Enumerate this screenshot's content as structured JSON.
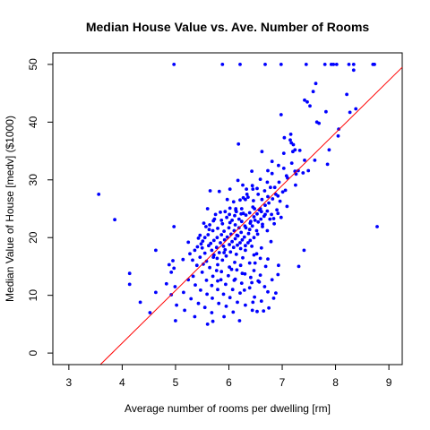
{
  "chart_data": {
    "type": "scatter",
    "title": "Median House Value vs. Ave. Number of Rooms",
    "xlabel": "Average number of rooms per dwelling [rm]",
    "ylabel": "Median Value of House [medv] ($1000)",
    "xlim": [
      2.7,
      9.25
    ],
    "ylim": [
      -2,
      52
    ],
    "xticks": [
      3,
      4,
      5,
      6,
      7,
      8,
      9
    ],
    "yticks": [
      0,
      10,
      20,
      30,
      40,
      50
    ],
    "grid": false,
    "legend": "none",
    "point_color": "#0000ff",
    "line_color": "#ff0000",
    "regression_line": {
      "intercept": -34.67,
      "slope": 9.1
    },
    "points": [
      [
        4.97,
        50
      ],
      [
        5.88,
        50
      ],
      [
        6.21,
        50
      ],
      [
        6.68,
        50
      ],
      [
        6.98,
        50
      ],
      [
        7.45,
        50
      ],
      [
        7.8,
        50
      ],
      [
        7.92,
        50
      ],
      [
        7.96,
        50
      ],
      [
        8.02,
        50
      ],
      [
        8.25,
        50
      ],
      [
        8.34,
        50
      ],
      [
        8.7,
        50
      ],
      [
        8.73,
        50
      ],
      [
        8.34,
        49
      ],
      [
        7.63,
        46.7
      ],
      [
        7.58,
        45.3
      ],
      [
        8.21,
        44.8
      ],
      [
        7.42,
        43.8
      ],
      [
        7.47,
        43.5
      ],
      [
        7.52,
        42.8
      ],
      [
        8.27,
        41.7
      ],
      [
        6.98,
        41.3
      ],
      [
        7.65,
        40.0
      ],
      [
        8.06,
        38.8
      ],
      [
        8.05,
        37.6
      ],
      [
        7.16,
        37.9
      ],
      [
        7.15,
        36.9
      ],
      [
        6.18,
        36.2
      ],
      [
        7.04,
        37.3
      ],
      [
        7.17,
        36.4
      ],
      [
        7.21,
        36.1
      ],
      [
        7.33,
        35.1
      ],
      [
        7.24,
        35.2
      ],
      [
        7.03,
        34.6
      ],
      [
        6.62,
        34.9
      ],
      [
        6.81,
        33.2
      ],
      [
        7.42,
        33.4
      ],
      [
        7.61,
        33.4
      ],
      [
        7.85,
        32.7
      ],
      [
        6.93,
        32.5
      ],
      [
        7.03,
        32.0
      ],
      [
        6.73,
        31.6
      ],
      [
        7.24,
        31.5
      ],
      [
        7.49,
        31.6
      ],
      [
        7.39,
        31.2
      ],
      [
        6.81,
        31.1
      ],
      [
        6.43,
        31.5
      ],
      [
        6.59,
        30.1
      ],
      [
        7.1,
        30.3
      ],
      [
        7.08,
        30.7
      ],
      [
        6.94,
        29.6
      ],
      [
        6.72,
        29.6
      ],
      [
        6.17,
        29.9
      ],
      [
        6.26,
        29.1
      ],
      [
        6.44,
        29.0
      ],
      [
        6.86,
        28.7
      ],
      [
        7.25,
        29.1
      ],
      [
        6.53,
        28.5
      ],
      [
        6.45,
        28.4
      ],
      [
        6.78,
        28.7
      ],
      [
        6.67,
        28.1
      ],
      [
        6.33,
        28.4
      ],
      [
        6.02,
        28.4
      ],
      [
        5.82,
        28.0
      ],
      [
        6.34,
        27.5
      ],
      [
        7.01,
        27.9
      ],
      [
        6.55,
        27.5
      ],
      [
        6.73,
        27.1
      ],
      [
        6.62,
        26.6
      ],
      [
        6.31,
        26.6
      ],
      [
        6.82,
        26.7
      ],
      [
        6.21,
        26.5
      ],
      [
        5.97,
        26.6
      ],
      [
        6.46,
        26.4
      ],
      [
        6.09,
        26.2
      ],
      [
        6.68,
        25.6
      ],
      [
        6.45,
        25.3
      ],
      [
        6.13,
        25.0
      ],
      [
        6.24,
        25.0
      ],
      [
        6.48,
        25.0
      ],
      [
        6.57,
        24.8
      ],
      [
        6.9,
        24.8
      ],
      [
        6.14,
        24.5
      ],
      [
        5.93,
        24.5
      ],
      [
        6.27,
        24.2
      ],
      [
        6.39,
        24.3
      ],
      [
        6.53,
        24.1
      ],
      [
        6.68,
        24.0
      ],
      [
        6.23,
        24.1
      ],
      [
        6.01,
        24.0
      ],
      [
        5.84,
        24.4
      ],
      [
        6.11,
        23.8
      ],
      [
        6.32,
        23.9
      ],
      [
        6.47,
        23.6
      ],
      [
        6.66,
        23.7
      ],
      [
        6.77,
        23.2
      ],
      [
        6.84,
        23.3
      ],
      [
        6.98,
        23.5
      ],
      [
        6.19,
        23.2
      ],
      [
        5.96,
        23.5
      ],
      [
        5.73,
        23.2
      ],
      [
        6.06,
        23.0
      ],
      [
        6.24,
        22.8
      ],
      [
        6.41,
        22.8
      ],
      [
        6.55,
        22.7
      ],
      [
        6.02,
        22.6
      ],
      [
        5.88,
        22.4
      ],
      [
        5.64,
        22.2
      ],
      [
        6.12,
        22.2
      ],
      [
        6.3,
        22.0
      ],
      [
        6.44,
        22.0
      ],
      [
        6.63,
        21.9
      ],
      [
        6.19,
        21.7
      ],
      [
        6.0,
        21.7
      ],
      [
        5.79,
        21.6
      ],
      [
        5.57,
        21.9
      ],
      [
        6.39,
        21.4
      ],
      [
        6.52,
        21.2
      ],
      [
        6.72,
        21.2
      ],
      [
        6.1,
        21.2
      ],
      [
        5.91,
        21.1
      ],
      [
        5.7,
        21.2
      ],
      [
        6.23,
        20.9
      ],
      [
        6.37,
        20.7
      ],
      [
        6.54,
        20.6
      ],
      [
        6.04,
        20.6
      ],
      [
        5.86,
        20.5
      ],
      [
        5.61,
        20.5
      ],
      [
        6.17,
        20.3
      ],
      [
        6.29,
        20.1
      ],
      [
        6.47,
        20.0
      ],
      [
        5.97,
        20.1
      ],
      [
        5.78,
        20.0
      ],
      [
        5.55,
        20.0
      ],
      [
        5.43,
        19.9
      ],
      [
        6.12,
        19.8
      ],
      [
        6.25,
        19.6
      ],
      [
        6.4,
        19.5
      ],
      [
        5.92,
        19.6
      ],
      [
        5.72,
        19.5
      ],
      [
        5.51,
        19.4
      ],
      [
        6.06,
        19.3
      ],
      [
        6.21,
        19.1
      ],
      [
        6.36,
        19.1
      ],
      [
        5.84,
        19.1
      ],
      [
        5.66,
        19.0
      ],
      [
        5.48,
        18.9
      ],
      [
        6.01,
        18.8
      ],
      [
        6.16,
        18.7
      ],
      [
        6.31,
        18.6
      ],
      [
        5.9,
        18.5
      ],
      [
        5.62,
        18.6
      ],
      [
        5.41,
        18.4
      ],
      [
        6.09,
        18.3
      ],
      [
        5.77,
        18.3
      ],
      [
        5.5,
        18.2
      ],
      [
        6.22,
        18.1
      ],
      [
        5.93,
        17.9
      ],
      [
        5.68,
        17.8
      ],
      [
        5.36,
        17.8
      ],
      [
        4.63,
        17.8
      ],
      [
        7.41,
        17.8
      ],
      [
        6.03,
        17.5
      ],
      [
        5.82,
        17.4
      ],
      [
        5.55,
        17.3
      ],
      [
        5.27,
        17.2
      ],
      [
        6.14,
        17.1
      ],
      [
        6.47,
        17.0
      ],
      [
        5.95,
        16.8
      ],
      [
        5.71,
        16.6
      ],
      [
        5.46,
        16.6
      ],
      [
        5.14,
        16.2
      ],
      [
        6.26,
        16.5
      ],
      [
        6.59,
        16.4
      ],
      [
        5.88,
        16.1
      ],
      [
        5.58,
        15.9
      ],
      [
        4.95,
        16.0
      ],
      [
        6.11,
        15.7
      ],
      [
        6.39,
        15.6
      ],
      [
        5.79,
        15.3
      ],
      [
        5.4,
        15.2
      ],
      [
        4.88,
        15.3
      ],
      [
        6.22,
        15.2
      ],
      [
        6.69,
        15.0
      ],
      [
        6.01,
        14.9
      ],
      [
        5.64,
        14.8
      ],
      [
        4.97,
        14.7
      ],
      [
        7.31,
        15.0
      ],
      [
        6.15,
        14.4
      ],
      [
        6.47,
        14.3
      ],
      [
        5.86,
        14.1
      ],
      [
        5.5,
        14.0
      ],
      [
        4.92,
        14.0
      ],
      [
        6.3,
        13.7
      ],
      [
        6.59,
        13.5
      ],
      [
        5.99,
        13.4
      ],
      [
        5.7,
        13.3
      ],
      [
        5.33,
        13.3
      ],
      [
        4.14,
        13.8
      ],
      [
        6.41,
        13.1
      ],
      [
        6.12,
        12.8
      ],
      [
        5.85,
        12.7
      ],
      [
        5.58,
        12.6
      ],
      [
        5.24,
        12.7
      ],
      [
        4.83,
        12.0
      ],
      [
        4.14,
        11.9
      ],
      [
        6.55,
        12.5
      ],
      [
        6.24,
        12.1
      ],
      [
        5.94,
        11.9
      ],
      [
        5.68,
        11.7
      ],
      [
        5.37,
        11.8
      ],
      [
        4.99,
        11.5
      ],
      [
        6.39,
        11.3
      ],
      [
        6.07,
        11.0
      ],
      [
        5.79,
        11.0
      ],
      [
        5.47,
        10.9
      ],
      [
        6.73,
        10.6
      ],
      [
        5.15,
        10.5
      ],
      [
        4.63,
        10.5
      ],
      [
        6.21,
        10.4
      ],
      [
        5.9,
        10.2
      ],
      [
        5.59,
        10.2
      ],
      [
        4.92,
        10.1
      ],
      [
        6.88,
        10.4
      ],
      [
        6.48,
        9.7
      ],
      [
        6.02,
        9.6
      ],
      [
        5.69,
        9.5
      ],
      [
        5.29,
        9.4
      ],
      [
        6.61,
        9.0
      ],
      [
        6.16,
        8.8
      ],
      [
        5.81,
        8.6
      ],
      [
        5.43,
        8.6
      ],
      [
        5.02,
        8.3
      ],
      [
        4.34,
        8.8
      ],
      [
        6.31,
        8.3
      ],
      [
        5.95,
        8.1
      ],
      [
        5.55,
        7.9
      ],
      [
        6.75,
        7.8
      ],
      [
        6.44,
        7.4
      ],
      [
        5.17,
        7.4
      ],
      [
        4.52,
        7.0
      ],
      [
        6.08,
        7.1
      ],
      [
        5.68,
        7.0
      ],
      [
        6.65,
        7.3
      ],
      [
        5.36,
        6.3
      ],
      [
        5.91,
        6.3
      ],
      [
        6.2,
        5.6
      ],
      [
        5.6,
        5.0
      ],
      [
        5.0,
        5.6
      ],
      [
        5.7,
        5.5
      ],
      [
        3.56,
        27.5
      ],
      [
        3.86,
        23.1
      ],
      [
        8.78,
        21.9
      ],
      [
        8.38,
        42.3
      ],
      [
        7.88,
        35.2
      ],
      [
        7.69,
        39.8
      ],
      [
        7.82,
        41.8
      ],
      [
        4.97,
        21.9
      ],
      [
        6.4,
        22.5
      ],
      [
        6.63,
        22.3
      ],
      [
        6.85,
        22.4
      ],
      [
        6.92,
        24.2
      ],
      [
        7.09,
        25.4
      ],
      [
        6.75,
        26.0
      ],
      [
        6.36,
        27.0
      ],
      [
        6.27,
        26.9
      ],
      [
        7.18,
        32.9
      ],
      [
        7.2,
        34.9
      ],
      [
        7.3,
        31.6
      ],
      [
        6.88,
        27.5
      ],
      [
        6.59,
        25.0
      ],
      [
        5.75,
        24.0
      ],
      [
        5.86,
        23.0
      ],
      [
        5.6,
        25.0
      ],
      [
        5.65,
        28.1
      ],
      [
        6.02,
        25.1
      ],
      [
        6.13,
        24.7
      ],
      [
        6.49,
        23.0
      ],
      [
        6.61,
        24.5
      ],
      [
        6.8,
        24.0
      ],
      [
        6.43,
        18.5
      ],
      [
        6.61,
        18.2
      ],
      [
        6.79,
        19.3
      ],
      [
        6.52,
        17.2
      ],
      [
        6.31,
        17.8
      ],
      [
        6.49,
        15.6
      ],
      [
        6.73,
        16.3
      ],
      [
        6.93,
        15.2
      ],
      [
        6.57,
        12.3
      ],
      [
        6.81,
        12.7
      ],
      [
        6.92,
        13.6
      ],
      [
        6.43,
        12.2
      ],
      [
        6.67,
        11.5
      ],
      [
        6.84,
        9.5
      ],
      [
        6.29,
        10.9
      ],
      [
        6.45,
        8.8
      ],
      [
        6.53,
        7.2
      ],
      [
        6.1,
        12.6
      ],
      [
        6.25,
        13.8
      ],
      [
        6.05,
        14.5
      ],
      [
        5.79,
        12.5
      ],
      [
        5.77,
        14.3
      ],
      [
        5.52,
        15.4
      ],
      [
        5.32,
        16.1
      ],
      [
        5.72,
        17.0
      ],
      [
        5.78,
        16.4
      ],
      [
        5.91,
        17.4
      ],
      [
        5.24,
        19.2
      ],
      [
        5.46,
        20.4
      ],
      [
        5.63,
        21.4
      ],
      [
        5.71,
        22.9
      ],
      [
        5.53,
        22.5
      ],
      [
        6.15,
        20.4
      ],
      [
        6.32,
        21.7
      ],
      [
        6.6,
        23.2
      ],
      [
        6.72,
        24.6
      ],
      [
        7.06,
        28.2
      ],
      [
        6.92,
        27.2
      ],
      [
        6.96,
        26.3
      ],
      [
        7.26,
        31.0
      ]
    ]
  }
}
